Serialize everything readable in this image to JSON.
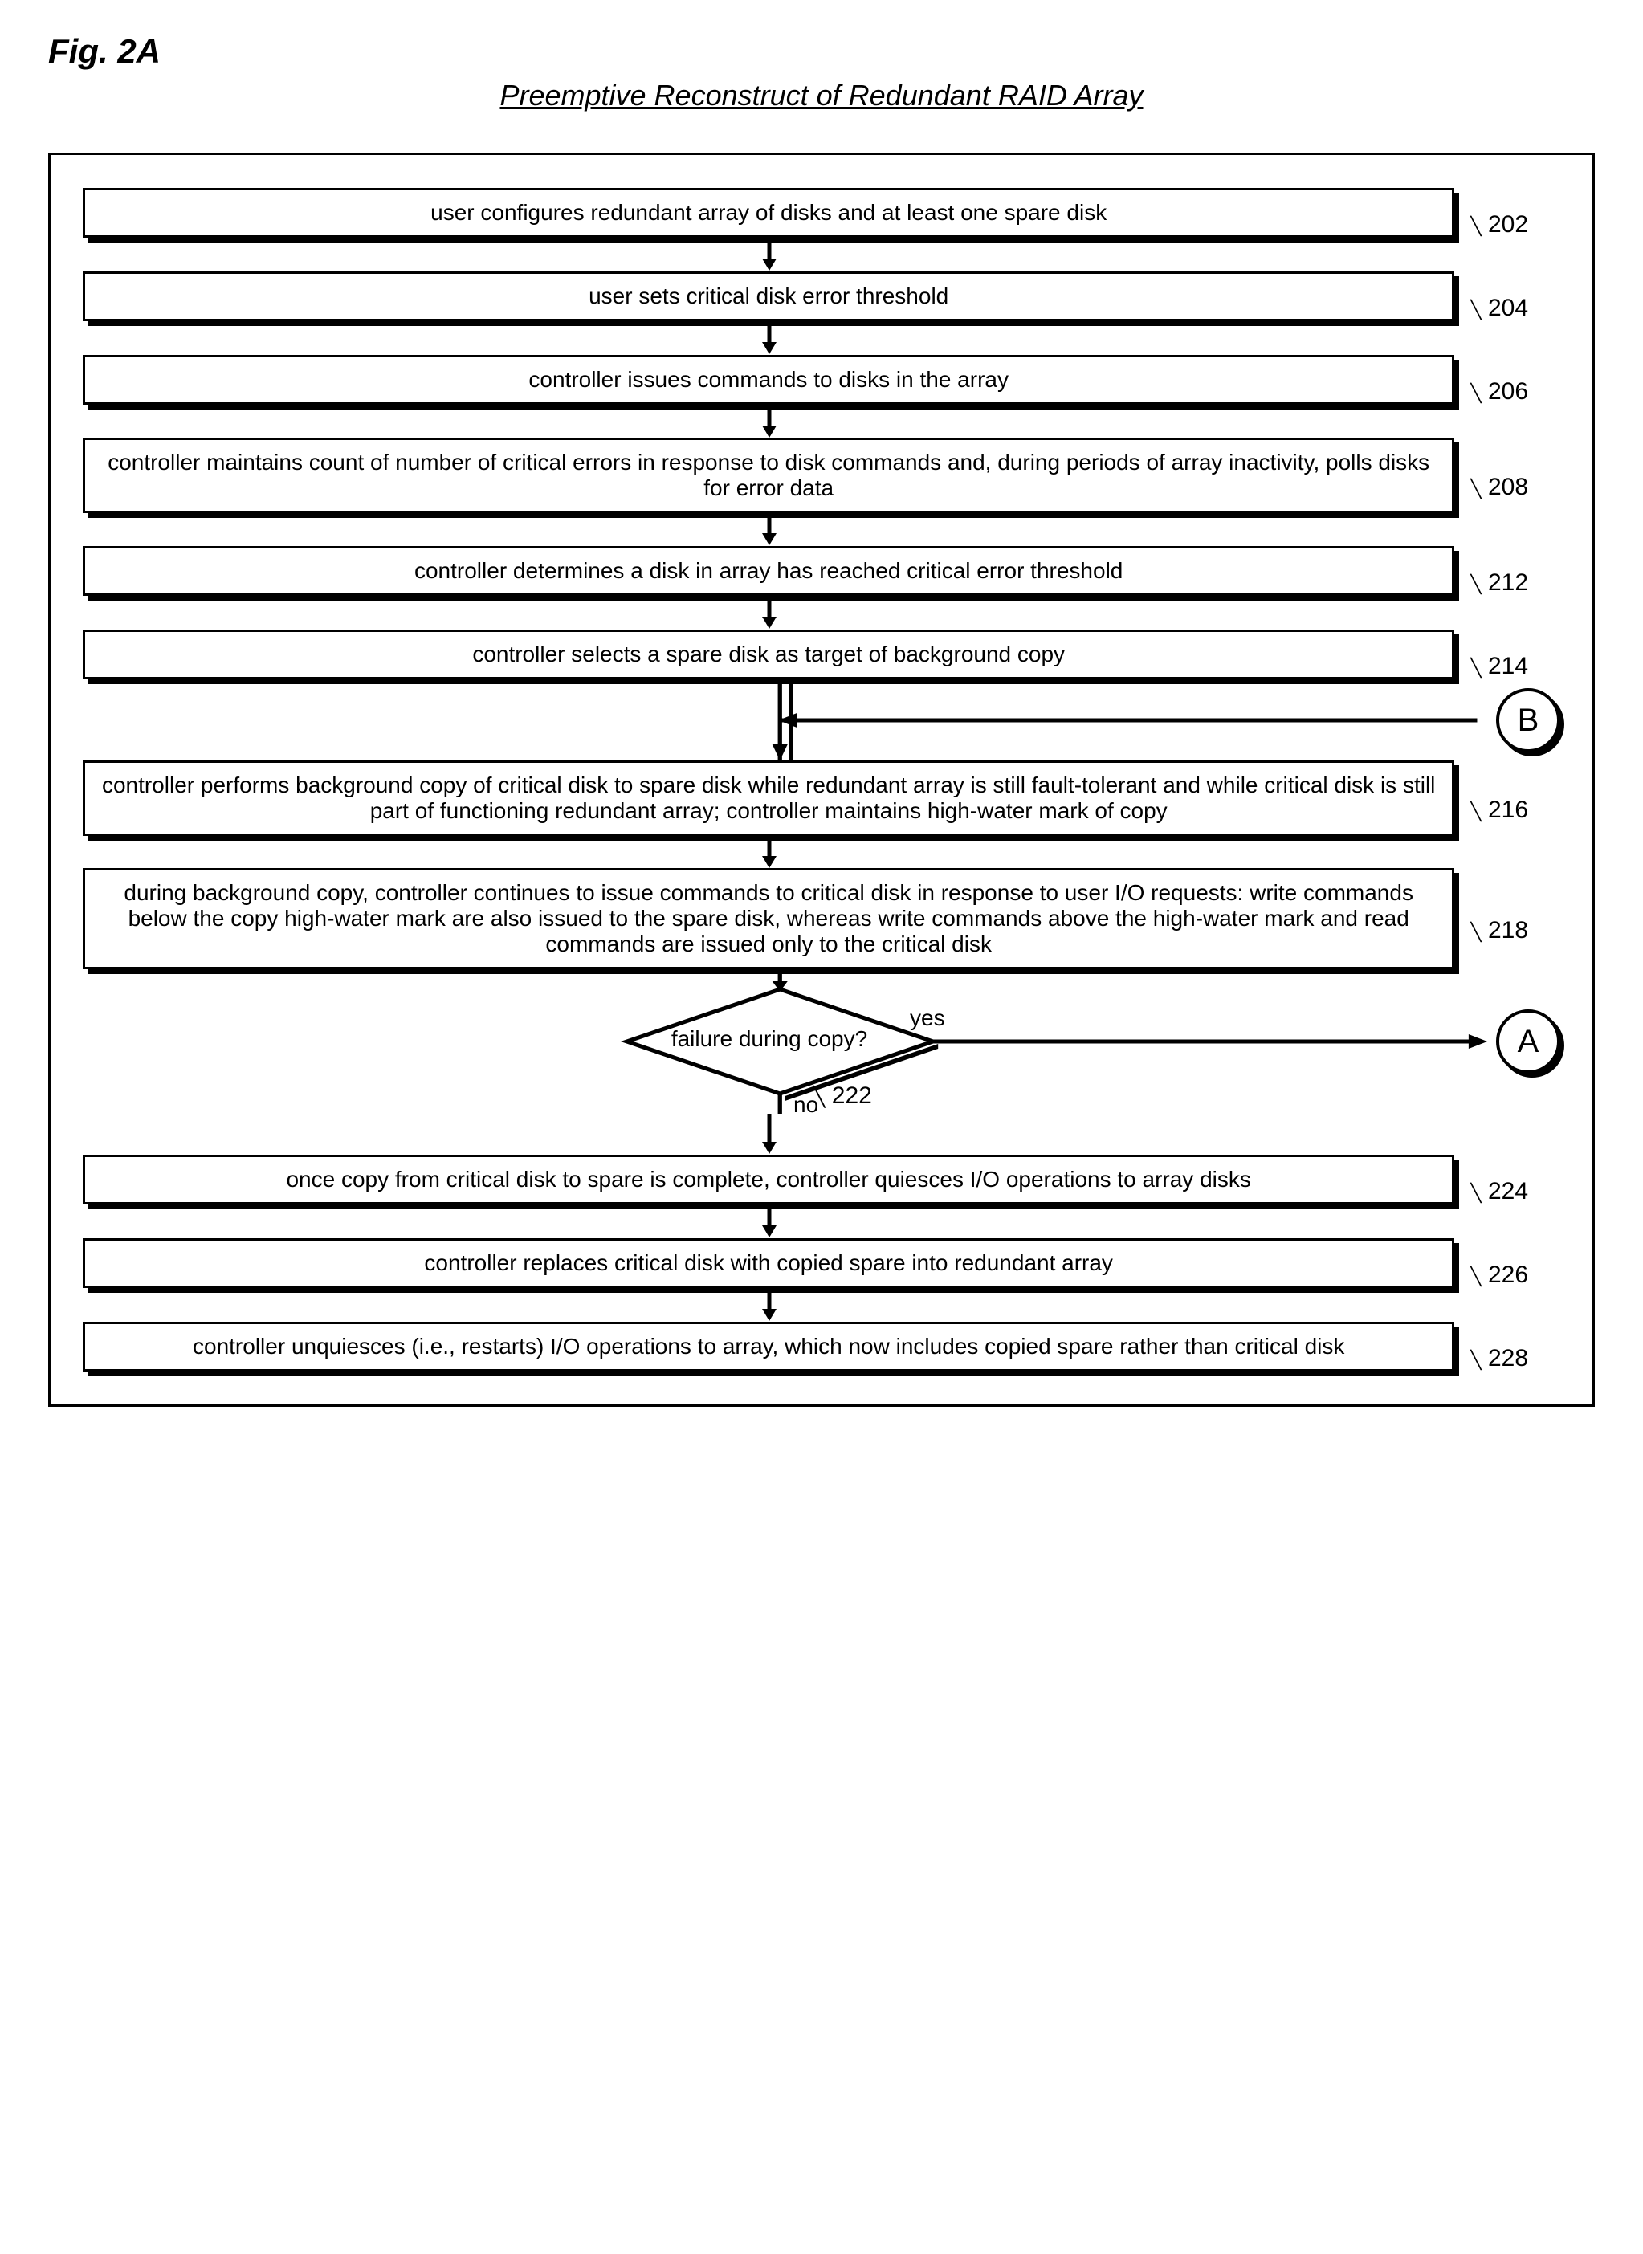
{
  "figure_label": "Fig. 2A",
  "title": "Preemptive Reconstruct of Redundant RAID Array",
  "steps": [
    {
      "text": "user configures redundant array of disks and at least one spare disk",
      "ref": "202"
    },
    {
      "text": "user sets critical disk error threshold",
      "ref": "204"
    },
    {
      "text": "controller issues commands to disks in the array",
      "ref": "206"
    },
    {
      "text": "controller maintains count of number of critical errors in response to disk commands and, during periods of array inactivity, polls disks for error data",
      "ref": "208"
    },
    {
      "text": "controller determines a disk in array has reached critical error threshold",
      "ref": "212"
    },
    {
      "text": "controller selects a spare disk as target of background copy",
      "ref": "214"
    }
  ],
  "steps_after_b": [
    {
      "text": "controller performs background copy of critical disk to spare disk while redundant array is still fault-tolerant and while critical disk is still part of functioning redundant array; controller maintains high-water mark of copy",
      "ref": "216"
    },
    {
      "text": "during background copy, controller continues to issue commands to critical disk in response to user I/O requests: write commands below the copy high-water mark are also issued to the spare disk, whereas write commands above the high-water mark and read commands are issued only to the critical disk",
      "ref": "218"
    }
  ],
  "decision": {
    "text": "failure during copy?",
    "ref": "222",
    "yes_label": "yes",
    "no_label": "no"
  },
  "steps_after_decision": [
    {
      "text": "once copy from critical disk to spare is complete, controller quiesces I/O operations to array disks",
      "ref": "224"
    },
    {
      "text": "controller replaces critical disk with copied spare into redundant array",
      "ref": "226"
    },
    {
      "text": "controller unquiesces (i.e., restarts) I/O operations to array, which now includes copied spare rather than critical disk",
      "ref": "228"
    }
  ],
  "connector_b": "B",
  "connector_a": "A",
  "colors": {
    "stroke": "#000000",
    "background": "#ffffff"
  },
  "arrow_height_short": 40,
  "arrow_height_tall": 120
}
